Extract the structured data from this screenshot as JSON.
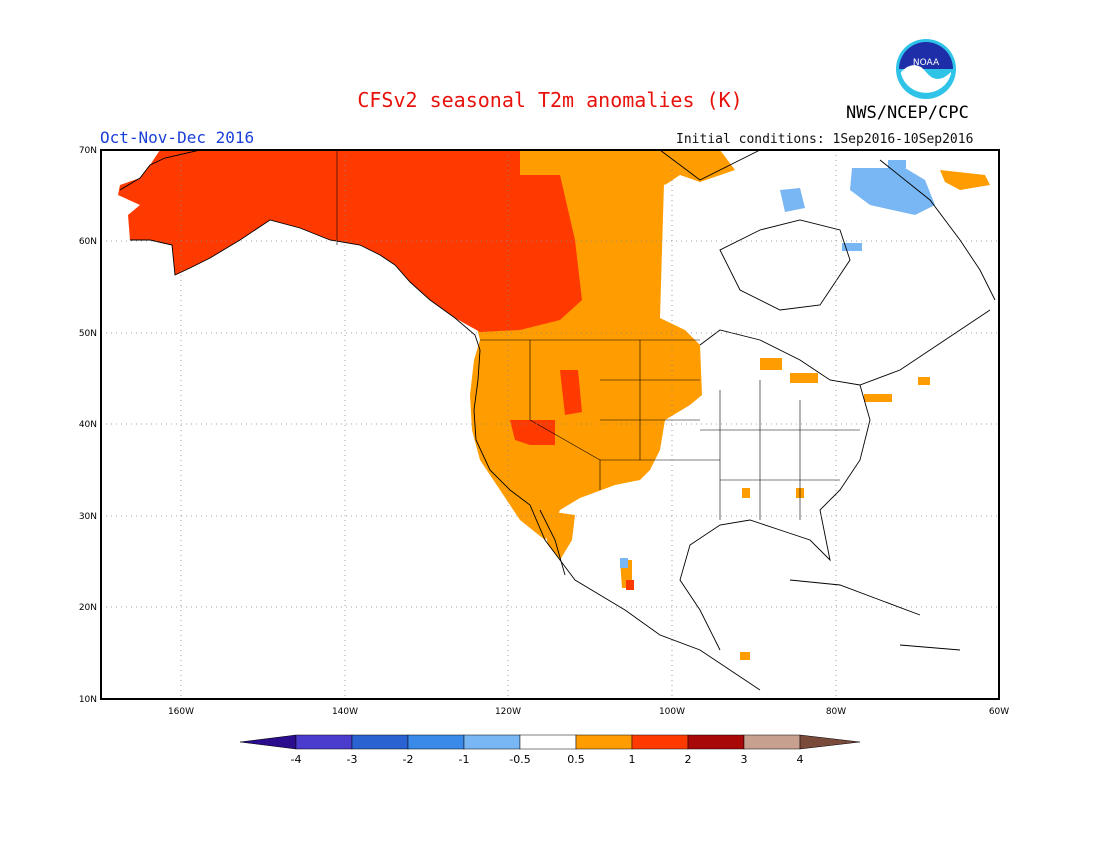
{
  "header": {
    "title": "CFSv2 seasonal T2m anomalies (K)",
    "agency": "NWS/NCEP/CPC",
    "logo_text": "NOAA",
    "season": "Oct-Nov-Dec 2016",
    "initial_conditions": "Initial conditions: 1Sep2016-10Sep2016"
  },
  "map": {
    "region": "North America",
    "lon_range": [
      -172,
      -60
    ],
    "lat_range": [
      10,
      70
    ],
    "lat_ticks": [
      "10N",
      "20N",
      "30N",
      "40N",
      "50N",
      "60N",
      "70N"
    ],
    "lon_ticks": [
      "160W",
      "140W",
      "120W",
      "100W",
      "80W",
      "60W"
    ],
    "anomaly_regions": [
      {
        "area": "Alaska and northwestern Canada",
        "category": "1 to 2"
      },
      {
        "area": "Western Canada and US Rockies",
        "category": "0.5 to 1"
      },
      {
        "area": "Northern Great Plains",
        "category": "0.5 to 1"
      },
      {
        "area": "Nevada and southern California",
        "category": "1 to 2"
      },
      {
        "area": "Hudson Bay islands / Baffin",
        "category": "-1 to -0.5"
      }
    ]
  },
  "colorbar": {
    "labels": [
      "-4",
      "-3",
      "-2",
      "-1",
      "-0.5",
      "0.5",
      "1",
      "2",
      "3",
      "4"
    ],
    "colors": [
      "#2a0c8c",
      "#4a3ccc",
      "#2a62d2",
      "#3a8aea",
      "#78b6f4",
      "#ffffff",
      "#ff9c00",
      "#ff3a00",
      "#a80808",
      "#c8a090",
      "#7a4a3a"
    ]
  },
  "colors": {
    "warm_light": "#ff9c00",
    "warm_mid": "#ff3a00",
    "cool_light": "#78b6f4",
    "title_red": "#e8120c",
    "season_blue": "#1a3fd6"
  }
}
